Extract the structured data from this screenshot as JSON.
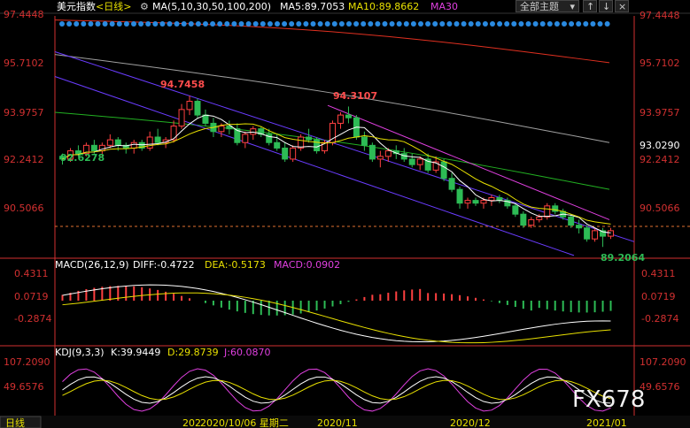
{
  "header": {
    "symbol": "美元指数",
    "period": "<日线>",
    "ma_label": "MA(5,10,30,50,100,200)",
    "ma5": "MA5:89.7053",
    "ma10": "MA10:89.8662",
    "ma30": "MA30",
    "theme_button": "全部主题",
    "colors": {
      "ma5": "#ffffff",
      "ma10": "#e8e000",
      "ma30": "#e040e0",
      "ma50": "#22b022",
      "ma100": "#a0a0a0",
      "ma200": "#e03020",
      "up": "#ff4040",
      "down": "#2dbb55",
      "axis": "#d23030"
    }
  },
  "price_axis": {
    "left": [
      "97.4448",
      "95.7102",
      "93.9757",
      "92.2412",
      "90.5066"
    ],
    "right": [
      "97.4448",
      "95.7102",
      "93.9757",
      "93.0290",
      "92.2412",
      "90.5066"
    ]
  },
  "annotations": {
    "high1": "94.7458",
    "high2": "94.3107",
    "low1": "92.6278",
    "low2": "89.2064"
  },
  "macd": {
    "label": "MACD(26,12,9)",
    "diff": "DIFF:-0.4722",
    "dea": "DEA:-0.5173",
    "macd": "MACD:0.0902",
    "ticks": [
      "0.4311",
      "0.0719",
      "-0.2874"
    ]
  },
  "kdj": {
    "label": "KDJ(9,3,3)",
    "k": "K:39.9449",
    "d": "D:29.8739",
    "j": "J:60.0870",
    "ticks": [
      "107.2090",
      "49.6576"
    ]
  },
  "bottom": {
    "period_tab": "日线",
    "date_left": "202",
    "date_cursor": "2020/10/06 星期二",
    "m1": "2020/11",
    "m2": "2020/12",
    "m3": "2021/01"
  },
  "watermark": "FX678",
  "chart_data": {
    "type": "candlestick",
    "ylim": [
      88.8,
      97.6
    ],
    "start_date": "2020-08-10",
    "candles": [
      [
        92.5,
        92.6,
        92.2,
        92.4
      ],
      [
        92.4,
        92.8,
        92.3,
        92.7
      ],
      [
        92.7,
        92.9,
        92.5,
        92.6
      ],
      [
        92.6,
        93.0,
        92.5,
        92.9
      ],
      [
        92.9,
        93.1,
        92.6,
        92.7
      ],
      [
        92.7,
        93.0,
        92.5,
        92.9
      ],
      [
        92.9,
        93.3,
        92.8,
        93.1
      ],
      [
        93.1,
        93.2,
        92.7,
        92.9
      ],
      [
        92.9,
        93.0,
        92.6,
        92.8
      ],
      [
        92.8,
        93.1,
        92.6,
        93.0
      ],
      [
        93.0,
        93.1,
        92.7,
        92.8
      ],
      [
        92.8,
        93.4,
        92.7,
        93.2
      ],
      [
        93.2,
        93.5,
        92.9,
        93.0
      ],
      [
        93.0,
        93.2,
        92.8,
        93.1
      ],
      [
        93.1,
        93.8,
        93.0,
        93.6
      ],
      [
        93.6,
        94.4,
        93.5,
        94.2
      ],
      [
        94.2,
        94.7,
        94.0,
        94.5
      ],
      [
        94.5,
        94.6,
        93.9,
        94.0
      ],
      [
        94.0,
        94.2,
        93.6,
        93.7
      ],
      [
        93.7,
        93.9,
        93.2,
        93.4
      ],
      [
        93.4,
        93.7,
        93.2,
        93.6
      ],
      [
        93.6,
        93.8,
        93.3,
        93.5
      ],
      [
        93.5,
        93.7,
        92.9,
        93.0
      ],
      [
        93.0,
        93.4,
        92.8,
        93.3
      ],
      [
        93.3,
        93.6,
        93.1,
        93.5
      ],
      [
        93.5,
        93.6,
        93.2,
        93.3
      ],
      [
        93.3,
        93.5,
        92.9,
        93.0
      ],
      [
        93.0,
        93.3,
        92.7,
        92.8
      ],
      [
        92.8,
        93.0,
        92.3,
        92.4
      ],
      [
        92.4,
        92.9,
        92.3,
        92.8
      ],
      [
        92.8,
        93.3,
        92.7,
        93.2
      ],
      [
        93.2,
        93.5,
        93.0,
        93.1
      ],
      [
        93.1,
        93.2,
        92.6,
        92.7
      ],
      [
        92.7,
        93.1,
        92.6,
        93.0
      ],
      [
        93.0,
        93.8,
        92.9,
        93.7
      ],
      [
        93.7,
        94.1,
        93.5,
        94.0
      ],
      [
        94.0,
        94.31,
        93.7,
        93.9
      ],
      [
        93.9,
        94.0,
        93.1,
        93.2
      ],
      [
        93.2,
        93.4,
        92.7,
        92.9
      ],
      [
        92.9,
        93.0,
        92.3,
        92.4
      ],
      [
        92.4,
        92.7,
        92.1,
        92.5
      ],
      [
        92.5,
        92.8,
        92.3,
        92.7
      ],
      [
        92.7,
        92.9,
        92.4,
        92.6
      ],
      [
        92.6,
        92.8,
        92.3,
        92.4
      ],
      [
        92.4,
        92.6,
        92.1,
        92.2
      ],
      [
        92.2,
        92.5,
        92.0,
        92.4
      ],
      [
        92.4,
        92.6,
        91.9,
        92.0
      ],
      [
        92.0,
        92.5,
        91.9,
        92.3
      ],
      [
        92.3,
        92.4,
        91.6,
        91.7
      ],
      [
        91.7,
        91.9,
        91.2,
        91.3
      ],
      [
        91.3,
        91.4,
        90.6,
        90.8
      ],
      [
        90.8,
        91.0,
        90.6,
        90.9
      ],
      [
        90.9,
        91.0,
        90.7,
        90.8
      ],
      [
        90.8,
        91.0,
        90.6,
        90.9
      ],
      [
        90.9,
        91.1,
        90.7,
        91.0
      ],
      [
        91.0,
        91.1,
        90.8,
        90.9
      ],
      [
        90.9,
        91.0,
        90.6,
        90.7
      ],
      [
        90.7,
        90.8,
        90.3,
        90.4
      ],
      [
        90.4,
        90.5,
        89.9,
        90.0
      ],
      [
        90.0,
        90.3,
        89.9,
        90.2
      ],
      [
        90.2,
        90.4,
        90.1,
        90.3
      ],
      [
        90.3,
        90.8,
        90.2,
        90.7
      ],
      [
        90.7,
        90.8,
        90.4,
        90.5
      ],
      [
        90.5,
        90.6,
        90.2,
        90.3
      ],
      [
        90.3,
        90.4,
        89.9,
        90.0
      ],
      [
        90.0,
        90.2,
        89.7,
        89.9
      ],
      [
        89.9,
        90.0,
        89.4,
        89.5
      ],
      [
        89.5,
        89.9,
        89.4,
        89.8
      ],
      [
        89.8,
        89.9,
        89.21,
        89.6
      ],
      [
        89.6,
        89.9,
        89.5,
        89.8
      ]
    ]
  }
}
